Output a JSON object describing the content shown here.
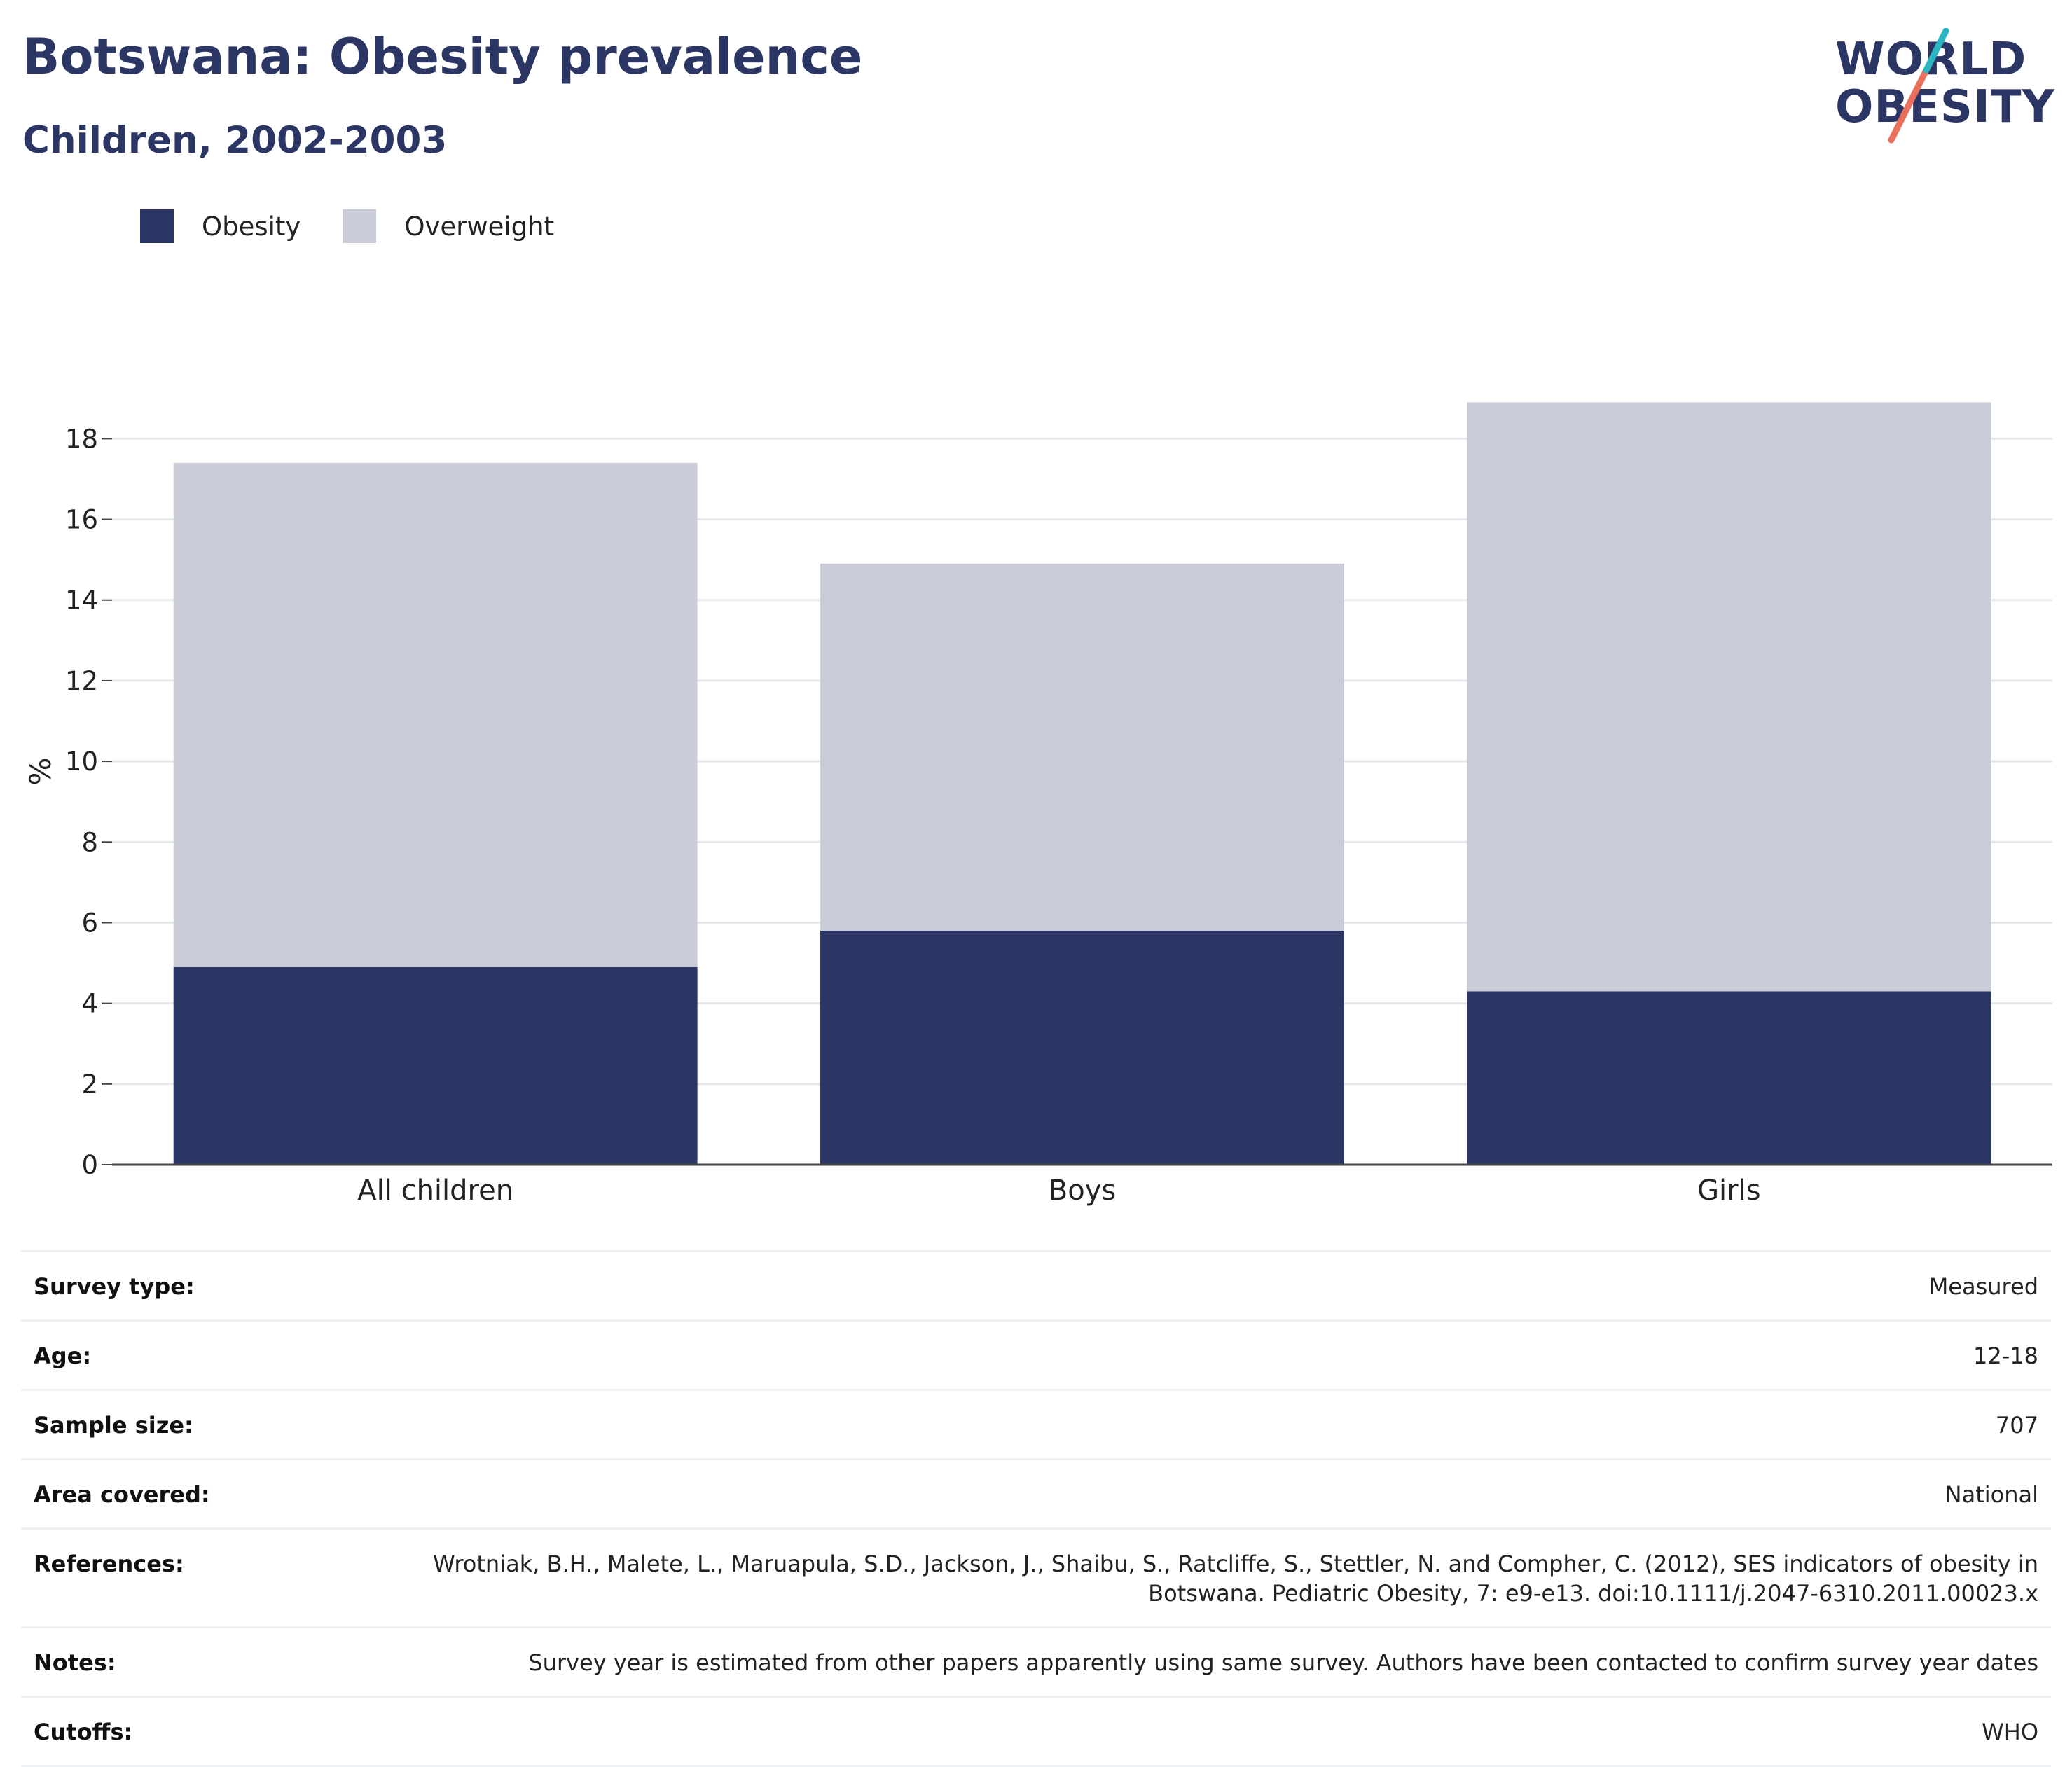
{
  "header": {
    "title": "Botswana: Obesity prevalence",
    "subtitle": "Children, 2002-2003"
  },
  "logo": {
    "line1": "WORLD",
    "line2": "OBESITY"
  },
  "colors": {
    "obesity": "#2b3664",
    "overweight": "#c9cbd7",
    "accent_teal": "#2bb5c1",
    "accent_red": "#e8705d"
  },
  "legend": [
    {
      "label": "Obesity",
      "color": "#2b3664"
    },
    {
      "label": "Overweight",
      "color": "#c9cbd7"
    }
  ],
  "chart_data": {
    "type": "bar",
    "stacked": true,
    "categories": [
      "All children",
      "Boys",
      "Girls"
    ],
    "series": [
      {
        "name": "Obesity",
        "values": [
          4.9,
          5.8,
          4.3
        ]
      },
      {
        "name": "Overweight",
        "values": [
          12.5,
          9.1,
          14.6
        ]
      }
    ],
    "ylabel": "%",
    "ylim": [
      0,
      19.5
    ],
    "yticks": [
      0,
      2,
      4,
      6,
      8,
      10,
      12,
      14,
      16,
      18
    ],
    "grid": true,
    "legend_position": "top-left"
  },
  "info": [
    {
      "key": "Survey type:",
      "value": "Measured"
    },
    {
      "key": "Age:",
      "value": "12-18"
    },
    {
      "key": "Sample size:",
      "value": "707"
    },
    {
      "key": "Area covered:",
      "value": "National"
    },
    {
      "key": "References:",
      "value": "Wrotniak, B.H., Malete, L., Maruapula, S.D., Jackson, J., Shaibu, S., Ratcliffe, S., Stettler, N. and Compher, C. (2012), SES indicators of obesity in Botswana. Pediatric Obesity, 7: e9-e13. doi:10.1111/j.2047-6310.2011.00023.x"
    },
    {
      "key": "Notes:",
      "value": "Survey year is estimated from other papers apparently using same survey. Authors have been contacted to confirm survey year dates"
    },
    {
      "key": "Cutoffs:",
      "value": "WHO"
    }
  ]
}
